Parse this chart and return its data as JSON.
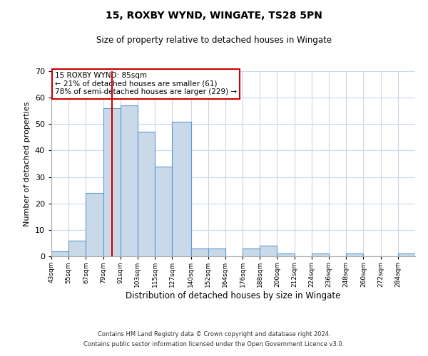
{
  "title": "15, ROXBY WYND, WINGATE, TS28 5PN",
  "subtitle": "Size of property relative to detached houses in Wingate",
  "xlabel": "Distribution of detached houses by size in Wingate",
  "ylabel": "Number of detached properties",
  "bins": [
    43,
    55,
    67,
    79,
    91,
    103,
    115,
    127,
    140,
    152,
    164,
    176,
    188,
    200,
    212,
    224,
    236,
    248,
    260,
    272,
    284,
    296
  ],
  "counts": [
    2,
    6,
    24,
    56,
    57,
    47,
    34,
    51,
    3,
    3,
    0,
    3,
    4,
    1,
    0,
    1,
    0,
    1,
    0,
    0,
    1
  ],
  "bar_facecolor": "#c9d9e8",
  "bar_edgecolor": "#5b9bd5",
  "ylim": [
    0,
    70
  ],
  "yticks": [
    0,
    10,
    20,
    30,
    40,
    50,
    60,
    70
  ],
  "property_size": 85,
  "vline_color": "#cc0000",
  "annotation_line1": "15 ROXBY WYND: 85sqm",
  "annotation_line2": "← 21% of detached houses are smaller (61)",
  "annotation_line3": "78% of semi-detached houses are larger (229) →",
  "annotation_box_edgecolor": "#cc0000",
  "annotation_box_facecolor": "#ffffff",
  "footnote1": "Contains HM Land Registry data © Crown copyright and database right 2024.",
  "footnote2": "Contains public sector information licensed under the Open Government Licence v3.0.",
  "background_color": "#ffffff",
  "grid_color": "#c8d8e8"
}
